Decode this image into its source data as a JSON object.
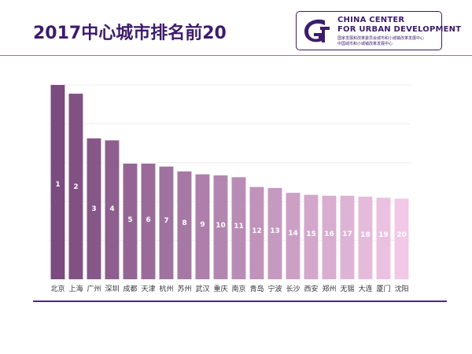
{
  "title": "2017中心城市排名前20",
  "logo": {
    "name": "china-center-logo",
    "line1": "CHINA CENTER",
    "line2": "FOR URBAN DEVELOPMENT",
    "sub1": "国家发展和改革委员会城市和小城镇改革发展中心",
    "sub2": "中国城市和小城镇改革发展中心",
    "color": "#3d1c6b"
  },
  "chart_data": {
    "type": "bar",
    "title": "2017中心城市排名前20",
    "categories": [
      "北京",
      "上海",
      "广州",
      "深圳",
      "成都",
      "天津",
      "杭州",
      "苏州",
      "武汉",
      "重庆",
      "南京",
      "青岛",
      "宁波",
      "长沙",
      "西安",
      "郑州",
      "无锡",
      "大连",
      "厦门",
      "沈阳"
    ],
    "data_labels": [
      "1",
      "2",
      "3",
      "4",
      "5",
      "6",
      "7",
      "8",
      "9",
      "10",
      "11",
      "12",
      "13",
      "14",
      "15",
      "16",
      "17",
      "18",
      "19",
      "20"
    ],
    "values": [
      100,
      95.5,
      72.5,
      71.5,
      59.5,
      59.5,
      58,
      55.5,
      54,
      53.5,
      52.5,
      47.5,
      47,
      44.5,
      43.5,
      43,
      43,
      42.5,
      42,
      41.5
    ],
    "ylim": [
      0,
      100
    ],
    "grid": true,
    "legend": "none",
    "color_start": "#7b4a7e",
    "color_end": "#f1c8e6"
  }
}
